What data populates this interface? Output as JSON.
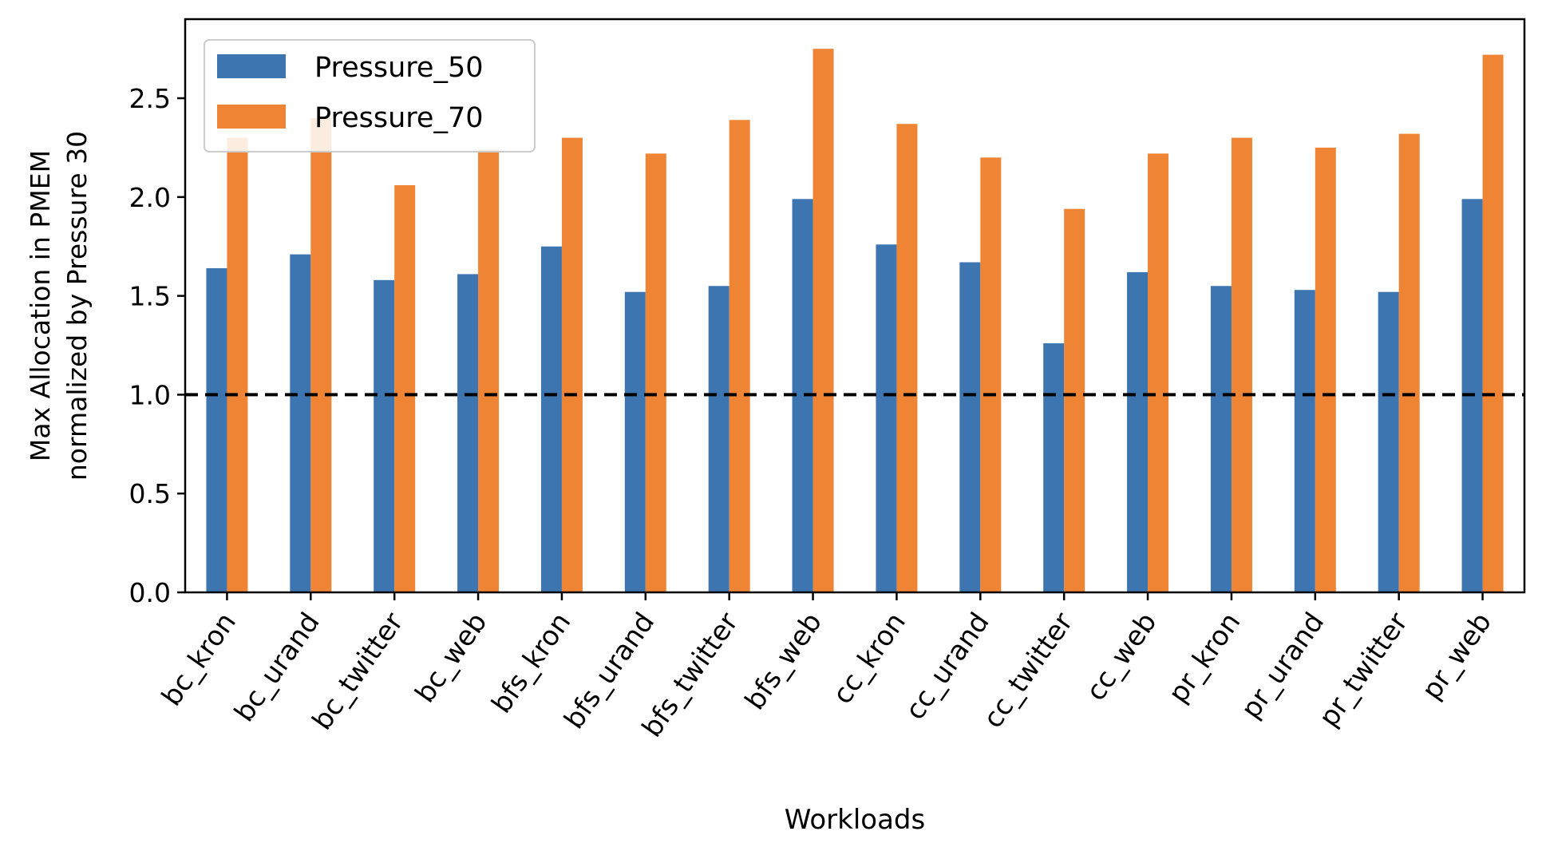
{
  "chart_data": {
    "type": "bar",
    "xlabel": "Workloads",
    "ylabel_lines": [
      "Max Allocation in PMEM",
      "normalized by Pressure 30"
    ],
    "categories": [
      "bc_kron",
      "bc_urand",
      "bc_twitter",
      "bc_web",
      "bfs_kron",
      "bfs_urand",
      "bfs_twitter",
      "bfs_web",
      "cc_kron",
      "cc_urand",
      "cc_twitter",
      "cc_web",
      "pr_kron",
      "pr_urand",
      "pr_twitter",
      "pr_web"
    ],
    "series": [
      {
        "name": "Pressure_50",
        "color": "#3c75b0",
        "values": [
          1.64,
          1.71,
          1.58,
          1.61,
          1.75,
          1.52,
          1.55,
          1.99,
          1.76,
          1.67,
          1.26,
          1.62,
          1.55,
          1.53,
          1.52,
          1.99
        ]
      },
      {
        "name": "Pressure_70",
        "color": "#ee8434",
        "values": [
          2.3,
          2.4,
          2.06,
          2.24,
          2.3,
          2.22,
          2.39,
          2.75,
          2.37,
          2.2,
          1.94,
          2.22,
          2.3,
          2.25,
          2.32,
          2.72
        ]
      }
    ],
    "yticks": [
      "0.0",
      "0.5",
      "1.0",
      "1.5",
      "2.0",
      "2.5"
    ],
    "ylim": [
      0,
      2.9
    ],
    "reference_line": {
      "y": 1.0,
      "style": "dashed",
      "color": "#000000"
    },
    "legend_position": "top-left",
    "grid": false
  }
}
